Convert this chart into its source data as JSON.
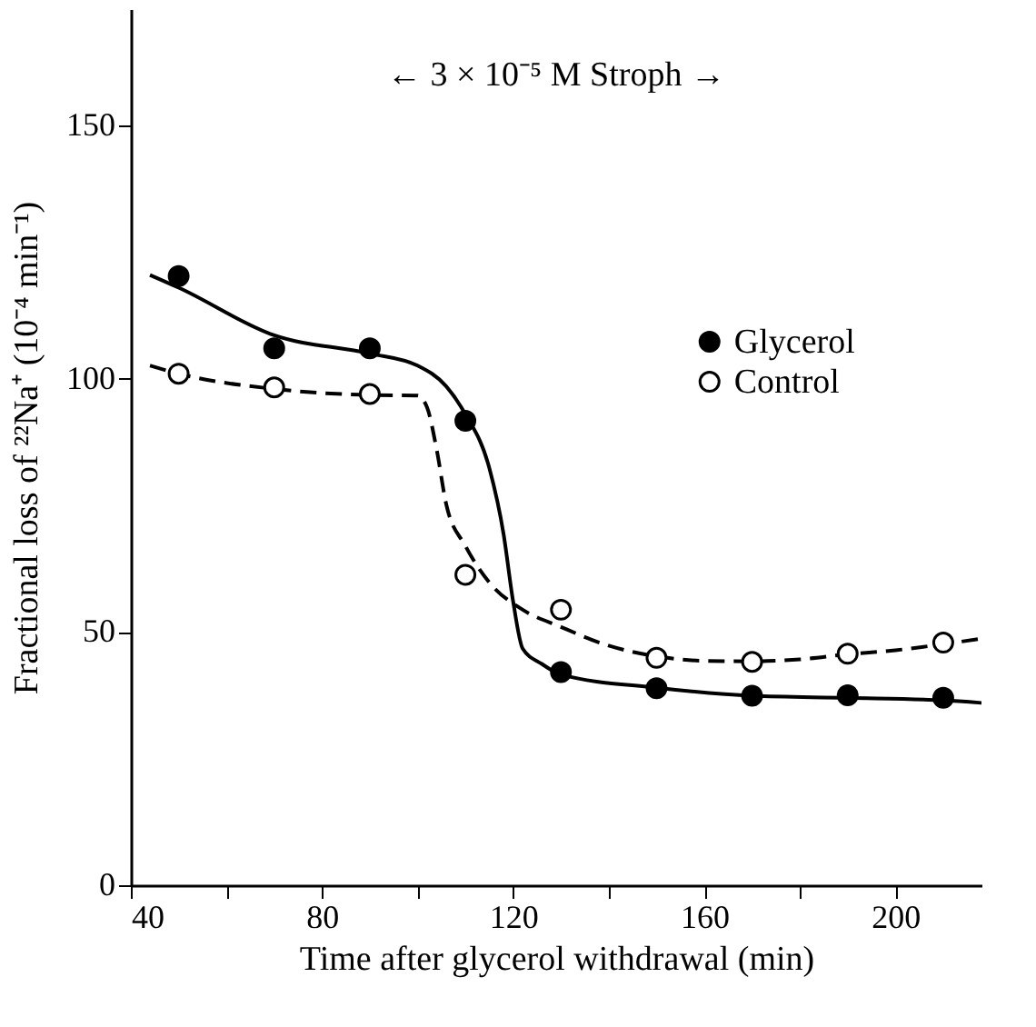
{
  "chart_data": {
    "type": "scatter",
    "xlabel": "Time after glycerol withdrawal (min)",
    "ylabel": "Fractional loss of ²²Na⁺ (10⁻⁴ min⁻¹)",
    "annotations": [
      "← 3 × 10⁻⁵ M Stroph →"
    ],
    "xlim": [
      40,
      218
    ],
    "ylim": [
      0,
      173
    ],
    "xticks": [
      40,
      {
        "value": 60,
        "label": null
      },
      80,
      {
        "value": 100,
        "label": null
      },
      120,
      {
        "value": 140,
        "label": null
      },
      160,
      {
        "value": 180,
        "label": null
      },
      200
    ],
    "yticks": [
      0,
      50,
      100,
      150
    ],
    "grid": false,
    "legend": "top right",
    "marker": "circle",
    "series": [
      {
        "type": "line",
        "color": "#000000",
        "line_style": "solid",
        "marker": "none",
        "x": [
          44,
          50,
          70,
          90,
          100,
          106,
          110,
          115,
          118,
          120,
          122,
          126,
          130,
          150,
          170,
          190,
          210,
          218
        ],
        "values": [
          120.5,
          118,
          108.6,
          105,
          102.6,
          98.5,
          93,
          82.4,
          69.3,
          56,
          46.7,
          43.7,
          41.6,
          39,
          37.4,
          37,
          36.5,
          36
        ]
      },
      {
        "type": "line",
        "color": "#000000",
        "line_style": "dashed",
        "marker": "none",
        "x": [
          44,
          50,
          70,
          90,
          100,
          102,
          104,
          106,
          110,
          115,
          122,
          130,
          140,
          150,
          160,
          170,
          180,
          190,
          200,
          210,
          218
        ],
        "values": [
          102.6,
          101,
          98,
          96.8,
          96.7,
          94.3,
          86,
          75.2,
          67,
          59.8,
          54.4,
          51,
          47.3,
          45.2,
          44.3,
          44.2,
          44.6,
          45.6,
          46.4,
          47.6,
          48.7
        ]
      },
      {
        "name": "Glycerol",
        "color": "#000000",
        "x": [
          50,
          70,
          90,
          110,
          130,
          150,
          170,
          190,
          210
        ],
        "values": [
          120.3,
          106,
          106,
          91.7,
          42.1,
          38.9,
          37.4,
          37.5,
          37
        ]
      },
      {
        "name": "Control",
        "color": "#ffffff",
        "x": [
          50,
          70,
          90,
          110,
          130,
          150,
          170,
          190,
          210
        ],
        "values": [
          101,
          98.3,
          97,
          61.3,
          54.4,
          44.9,
          44.1,
          45.7,
          47.9
        ]
      }
    ]
  }
}
